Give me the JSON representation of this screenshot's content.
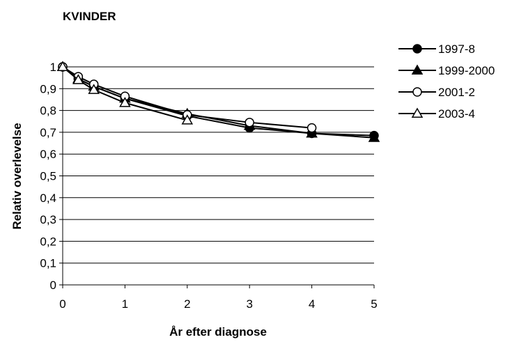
{
  "chart_data": {
    "type": "line",
    "title": "KVINDER",
    "xlabel": "År efter diagnose",
    "ylabel": "Relativ overlevelse",
    "xlim": [
      0,
      5
    ],
    "ylim": [
      0,
      1
    ],
    "x_ticks": [
      "0",
      "1",
      "2",
      "3",
      "4",
      "5"
    ],
    "y_ticks": [
      "0",
      "0,1",
      "0,2",
      "0,3",
      "0,4",
      "0,5",
      "0,6",
      "0,7",
      "0,8",
      "0,9",
      "1"
    ],
    "grid": "horizontal",
    "legend_position": "right",
    "series": [
      {
        "name": "1997-8",
        "marker": "filled-circle",
        "x": [
          0,
          0.25,
          0.5,
          1,
          2,
          3,
          4,
          5
        ],
        "y": [
          1,
          0.945,
          0.91,
          0.855,
          0.775,
          0.72,
          0.695,
          0.685
        ]
      },
      {
        "name": "1999-2000",
        "marker": "filled-triangle",
        "x": [
          0,
          0.25,
          0.5,
          1,
          2,
          3,
          4,
          5
        ],
        "y": [
          1,
          0.945,
          0.91,
          0.855,
          0.785,
          0.73,
          0.695,
          0.675
        ]
      },
      {
        "name": "2001-2",
        "marker": "open-circle",
        "x": [
          0,
          0.25,
          0.5,
          1,
          2,
          3,
          4
        ],
        "y": [
          1,
          0.955,
          0.92,
          0.865,
          0.78,
          0.745,
          0.72
        ]
      },
      {
        "name": "2003-4",
        "marker": "open-triangle",
        "x": [
          0,
          0.25,
          0.5,
          1,
          2
        ],
        "y": [
          1,
          0.94,
          0.895,
          0.835,
          0.755
        ]
      }
    ]
  }
}
